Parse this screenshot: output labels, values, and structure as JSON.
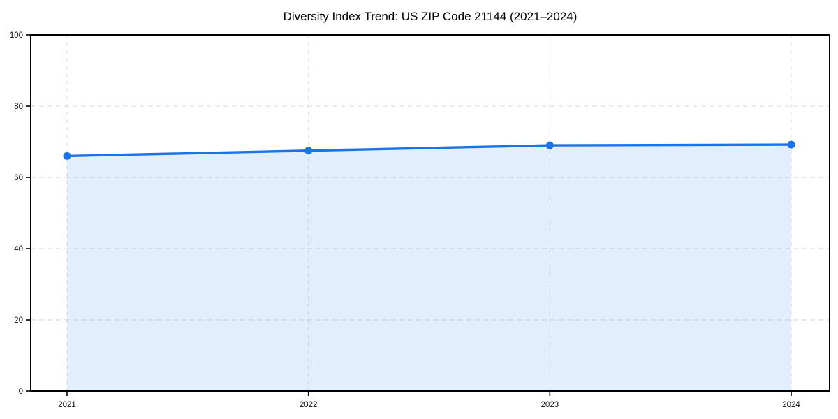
{
  "page": {
    "background": "#ffffff"
  },
  "chart_data": {
    "type": "area",
    "title": "Diversity Index Trend: US ZIP Code 21144 (2021–2024)",
    "x": [
      "2021",
      "2022",
      "2023",
      "2024"
    ],
    "series": [
      {
        "name": "Diversity Index",
        "values": [
          66.0,
          67.5,
          69.0,
          69.2
        ]
      }
    ],
    "xlabel": "",
    "ylabel": "",
    "ylim": [
      0,
      100
    ],
    "yticks": [
      0,
      20,
      40,
      60,
      80,
      100
    ],
    "grid": true,
    "grid_style": "dashed",
    "legend_position": "none",
    "marker": "circle",
    "colors": {
      "line": "#1a73e8",
      "fill": "rgba(26,115,232,0.12)",
      "grid": "#dedede",
      "axis": "#000000",
      "tick_label": "#111111",
      "title": "#000000"
    }
  }
}
